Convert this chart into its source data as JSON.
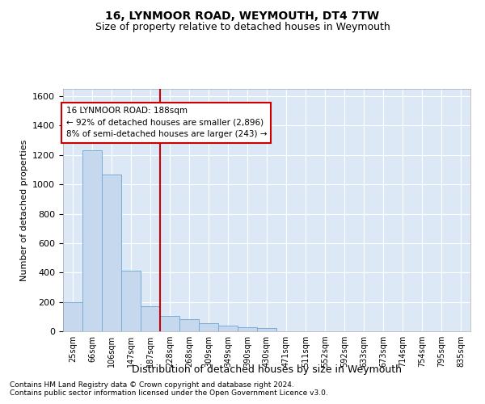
{
  "title1": "16, LYNMOOR ROAD, WEYMOUTH, DT4 7TW",
  "title2": "Size of property relative to detached houses in Weymouth",
  "xlabel": "Distribution of detached houses by size in Weymouth",
  "ylabel": "Number of detached properties",
  "footnote1": "Contains HM Land Registry data © Crown copyright and database right 2024.",
  "footnote2": "Contains public sector information licensed under the Open Government Licence v3.0.",
  "bar_labels": [
    "25sqm",
    "66sqm",
    "106sqm",
    "147sqm",
    "187sqm",
    "228sqm",
    "268sqm",
    "309sqm",
    "349sqm",
    "390sqm",
    "430sqm",
    "471sqm",
    "511sqm",
    "552sqm",
    "592sqm",
    "633sqm",
    "673sqm",
    "714sqm",
    "754sqm",
    "795sqm",
    "835sqm"
  ],
  "bar_values": [
    200,
    1230,
    1065,
    410,
    170,
    105,
    85,
    55,
    40,
    25,
    20,
    0,
    0,
    0,
    0,
    0,
    0,
    0,
    0,
    0,
    0
  ],
  "bar_color": "#c5d8ee",
  "bar_edge_color": "#7aadd4",
  "background_color": "#dce8f5",
  "grid_color": "#ffffff",
  "vline_x_idx": 4.5,
  "vline_color": "#cc0000",
  "annotation_text": "16 LYNMOOR ROAD: 188sqm\n← 92% of detached houses are smaller (2,896)\n8% of semi-detached houses are larger (243) →",
  "annotation_box_color": "#cc0000",
  "ylim": [
    0,
    1650
  ],
  "yticks": [
    0,
    200,
    400,
    600,
    800,
    1000,
    1200,
    1400,
    1600
  ]
}
